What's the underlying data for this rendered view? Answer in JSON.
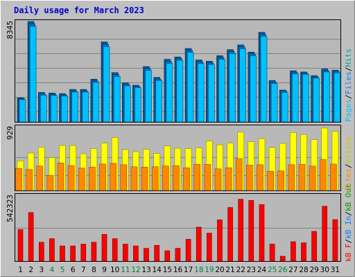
{
  "chart_title": "Daily usage for March 2023",
  "colors": {
    "background": "#c0c0c0",
    "plot_bg": "#b8b8b8",
    "grid": "#808080",
    "title": "#0000cc",
    "hits": "#00c0c0",
    "files": "#00a0ff",
    "pages": "#00c0ff",
    "visits": "#ffff00",
    "sites": "#ff8800",
    "kbytes": "#ff0000",
    "weekend_day": "#007f3f",
    "weekday_day": "#000000"
  },
  "legend": {
    "top": [
      "Hits",
      "Files",
      "Pages"
    ],
    "middle": [
      "Visits",
      "Sites"
    ],
    "bottom": [
      "kB Out",
      "kB In",
      "kB F"
    ],
    "separator": "/"
  },
  "chart_data": [
    {
      "type": "bar",
      "panel": "hits-files-pages",
      "ymax_label": "8345",
      "ylim": [
        0,
        8345
      ],
      "categories": [
        "1",
        "2",
        "3",
        "4",
        "5",
        "6",
        "7",
        "8",
        "9",
        "10",
        "11",
        "12",
        "13",
        "14",
        "15",
        "16",
        "17",
        "18",
        "19",
        "20",
        "21",
        "22",
        "23",
        "24",
        "25",
        "26",
        "27",
        "28",
        "29",
        "30",
        "31"
      ],
      "weekend_days": [
        "4",
        "5",
        "11",
        "12",
        "18",
        "19",
        "25",
        "26"
      ],
      "series": [
        {
          "name": "Hits",
          "values": [
            2000,
            8345,
            2450,
            2400,
            2350,
            2700,
            2700,
            3550,
            6650,
            4100,
            3250,
            3050,
            4600,
            3700,
            5200,
            5400,
            6100,
            5150,
            5050,
            5500,
            6000,
            6400,
            5800,
            7450,
            3450,
            2650,
            4250,
            4150,
            3850,
            4400,
            4300
          ]
        },
        {
          "name": "Files",
          "values": [
            1930,
            8150,
            2330,
            2300,
            2250,
            2580,
            2580,
            3400,
            6450,
            3930,
            3120,
            2950,
            4450,
            3560,
            5050,
            5280,
            5950,
            5000,
            4900,
            5350,
            5850,
            6250,
            5650,
            7300,
            3300,
            2560,
            4120,
            4050,
            3740,
            4270,
            4200
          ]
        },
        {
          "name": "Pages",
          "values": [
            1850,
            7950,
            2230,
            2200,
            2150,
            2480,
            2480,
            3280,
            6250,
            3780,
            3000,
            2850,
            4280,
            3430,
            4870,
            5120,
            5780,
            4860,
            4770,
            5200,
            5680,
            6080,
            5500,
            7120,
            3180,
            2460,
            4000,
            3960,
            3640,
            4150,
            4080
          ]
        }
      ]
    },
    {
      "type": "bar",
      "panel": "visits-sites",
      "ymax_label": "929",
      "ylim": [
        0,
        929
      ],
      "categories": [
        "1",
        "2",
        "3",
        "4",
        "5",
        "6",
        "7",
        "8",
        "9",
        "10",
        "11",
        "12",
        "13",
        "14",
        "15",
        "16",
        "17",
        "18",
        "19",
        "20",
        "21",
        "22",
        "23",
        "24",
        "25",
        "26",
        "27",
        "28",
        "29",
        "30",
        "31"
      ],
      "series": [
        {
          "name": "Visits",
          "values": [
            430,
            545,
            630,
            480,
            655,
            655,
            535,
            610,
            690,
            770,
            595,
            565,
            600,
            540,
            650,
            615,
            610,
            620,
            720,
            665,
            690,
            850,
            710,
            755,
            625,
            685,
            845,
            815,
            740,
            910,
            860
          ]
        },
        {
          "name": "Sites",
          "values": [
            320,
            305,
            355,
            220,
            400,
            360,
            325,
            340,
            385,
            395,
            375,
            345,
            340,
            345,
            355,
            360,
            330,
            380,
            380,
            315,
            330,
            465,
            370,
            375,
            280,
            285,
            375,
            380,
            355,
            450,
            385
          ]
        }
      ]
    },
    {
      "type": "bar",
      "panel": "kbytes",
      "ymax_label": "542323",
      "ylim": [
        0,
        542323
      ],
      "categories": [
        "1",
        "2",
        "3",
        "4",
        "5",
        "6",
        "7",
        "8",
        "9",
        "10",
        "11",
        "12",
        "13",
        "14",
        "15",
        "16",
        "17",
        "18",
        "19",
        "20",
        "21",
        "22",
        "23",
        "24",
        "25",
        "26",
        "27",
        "28",
        "29",
        "30",
        "31"
      ],
      "series": [
        {
          "name": "kB F",
          "values": [
            260000,
            400000,
            155000,
            185000,
            125000,
            125000,
            140000,
            155000,
            220000,
            185000,
            140000,
            125000,
            105000,
            130000,
            85000,
            105000,
            180000,
            280000,
            230000,
            340000,
            442000,
            510000,
            500000,
            466000,
            140000,
            40000,
            160000,
            150000,
            245000,
            452000,
            342000
          ]
        }
      ]
    }
  ]
}
